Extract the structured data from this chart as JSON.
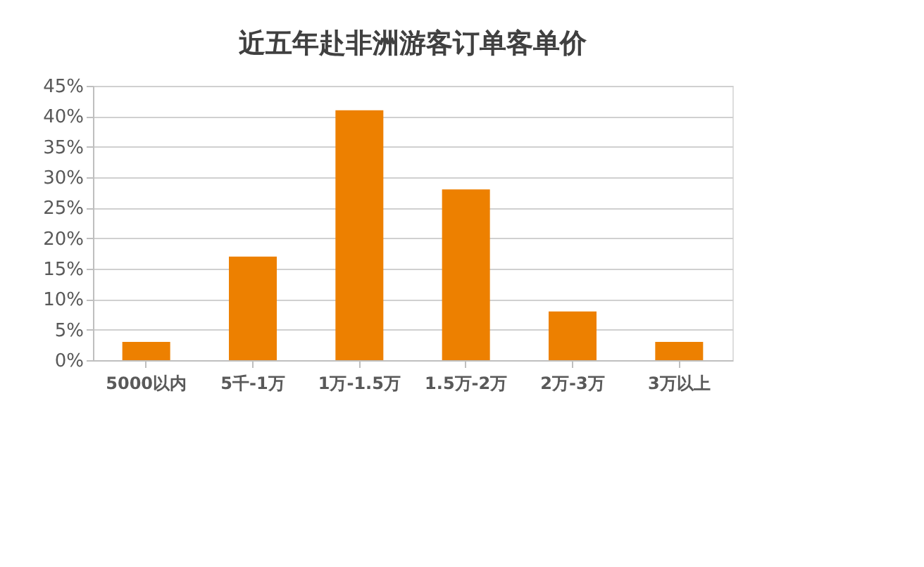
{
  "chart_data": {
    "type": "bar",
    "title": "近五年赴非洲游客订单客单价",
    "categories": [
      "5000以内",
      "5千-1万",
      "1万-1.5万",
      "1.5万-2万",
      "2万-3万",
      "3万以上"
    ],
    "values": [
      3,
      17,
      41,
      28,
      8,
      3
    ],
    "color": "#ed8000",
    "ylim": [
      0,
      45
    ],
    "yticks": [
      {
        "value": 0,
        "label": "0%"
      },
      {
        "value": 5,
        "label": "5%"
      },
      {
        "value": 10,
        "label": "10%"
      },
      {
        "value": 15,
        "label": "15%"
      },
      {
        "value": 20,
        "label": "20%"
      },
      {
        "value": 25,
        "label": "25%"
      },
      {
        "value": 30,
        "label": "30%"
      },
      {
        "value": 35,
        "label": "35%"
      },
      {
        "value": 40,
        "label": "40%"
      },
      {
        "value": 45,
        "label": "45%"
      }
    ],
    "grid": "y"
  }
}
